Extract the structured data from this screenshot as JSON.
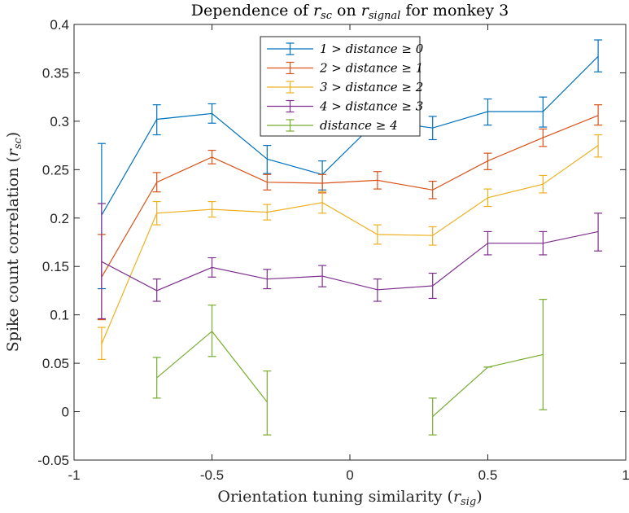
{
  "chart_data": {
    "type": "line",
    "title": "Dependence of r_sc on r_signal for monkey 3",
    "xlabel": "Orientation tuning similarity (r_sig)",
    "ylabel": "Spike count correlation (r_sc)",
    "xlim": [
      -1,
      1
    ],
    "ylim": [
      -0.05,
      0.4
    ],
    "xticks": [
      -1,
      -0.5,
      0,
      0.5,
      1
    ],
    "xtick_labels": [
      "-1",
      "-0.5",
      "0",
      "0.5",
      "1"
    ],
    "yticks": [
      -0.05,
      0,
      0.05,
      0.1,
      0.15,
      0.2,
      0.25,
      0.3,
      0.35,
      0.4
    ],
    "ytick_labels": [
      "-0.05",
      "0",
      "0.05",
      "0.1",
      "0.15",
      "0.2",
      "0.25",
      "0.3",
      "0.35",
      "0.4"
    ],
    "grid": false,
    "legend_position": "top-center",
    "x": [
      -0.9,
      -0.7,
      -0.5,
      -0.3,
      -0.1,
      0.1,
      0.3,
      0.5,
      0.7,
      0.9
    ],
    "series": [
      {
        "name": "1 > distance ≥ 0",
        "color": "#0072BD",
        "values": [
          0.203,
          0.302,
          0.308,
          0.261,
          0.245,
          0.301,
          0.293,
          0.31,
          0.31,
          0.367
        ],
        "err_low": [
          0.127,
          0.286,
          0.298,
          0.246,
          0.229,
          0.29,
          0.281,
          0.296,
          0.294,
          0.351
        ],
        "err_high": [
          0.277,
          0.317,
          0.318,
          0.275,
          0.259,
          0.312,
          0.305,
          0.323,
          0.325,
          0.384
        ]
      },
      {
        "name": "2 > distance ≥ 1",
        "color": "#D95319",
        "values": [
          0.139,
          0.237,
          0.263,
          0.237,
          0.236,
          0.239,
          0.229,
          0.259,
          0.283,
          0.306
        ],
        "err_low": [
          0.095,
          0.227,
          0.256,
          0.229,
          0.226,
          0.23,
          0.22,
          0.25,
          0.274,
          0.296
        ],
        "err_high": [
          0.183,
          0.247,
          0.27,
          0.245,
          0.245,
          0.248,
          0.238,
          0.267,
          0.292,
          0.317
        ]
      },
      {
        "name": "3 > distance ≥ 2",
        "color": "#EDB120",
        "values": [
          0.07,
          0.205,
          0.209,
          0.206,
          0.216,
          0.183,
          0.182,
          0.221,
          0.235,
          0.275
        ],
        "err_low": [
          0.054,
          0.193,
          0.201,
          0.198,
          0.205,
          0.173,
          0.172,
          0.212,
          0.226,
          0.263
        ],
        "err_high": [
          0.087,
          0.217,
          0.217,
          0.214,
          0.227,
          0.193,
          0.191,
          0.23,
          0.244,
          0.286
        ]
      },
      {
        "name": "4 > distance ≥ 3",
        "color": "#7E2F8E",
        "values": [
          0.155,
          0.125,
          0.149,
          0.137,
          0.14,
          0.126,
          0.13,
          0.174,
          0.174,
          0.186
        ],
        "err_low": [
          0.096,
          0.114,
          0.139,
          0.127,
          0.129,
          0.114,
          0.117,
          0.162,
          0.162,
          0.166
        ],
        "err_high": [
          0.215,
          0.137,
          0.159,
          0.147,
          0.151,
          0.137,
          0.143,
          0.186,
          0.186,
          0.205
        ]
      },
      {
        "name": "distance ≥ 4",
        "color": "#77AC30",
        "values": [
          null,
          0.035,
          0.083,
          0.01,
          null,
          null,
          -0.005,
          0.046,
          0.059,
          null
        ],
        "err_low": [
          null,
          0.014,
          0.057,
          -0.024,
          null,
          null,
          -0.024,
          0.046,
          0.002,
          null
        ],
        "err_high": [
          null,
          0.056,
          0.11,
          0.042,
          null,
          null,
          0.014,
          0.046,
          0.116,
          null
        ]
      }
    ]
  }
}
